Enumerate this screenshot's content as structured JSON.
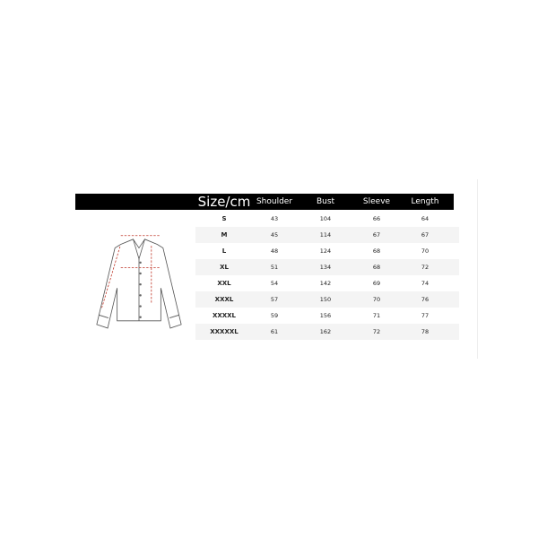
{
  "table": {
    "headers": [
      "Size/cm",
      "Shoulder",
      "Bust",
      "Sleeve",
      "Length"
    ],
    "rows": [
      [
        "S",
        "43",
        "104",
        "66",
        "64"
      ],
      [
        "M",
        "45",
        "114",
        "67",
        "67"
      ],
      [
        "L",
        "48",
        "124",
        "68",
        "70"
      ],
      [
        "XL",
        "51",
        "134",
        "68",
        "72"
      ],
      [
        "XXL",
        "54",
        "142",
        "69",
        "74"
      ],
      [
        "XXXL",
        "57",
        "150",
        "70",
        "76"
      ],
      [
        "XXXXL",
        "59",
        "156",
        "71",
        "77"
      ],
      [
        "XXXXXL",
        "61",
        "162",
        "72",
        "78"
      ]
    ]
  },
  "colors": {
    "header_bg": "#000000",
    "measure_line": "#c0392b",
    "alt_row": "#f4f4f4"
  },
  "illustration": "shirt-measurement-diagram"
}
